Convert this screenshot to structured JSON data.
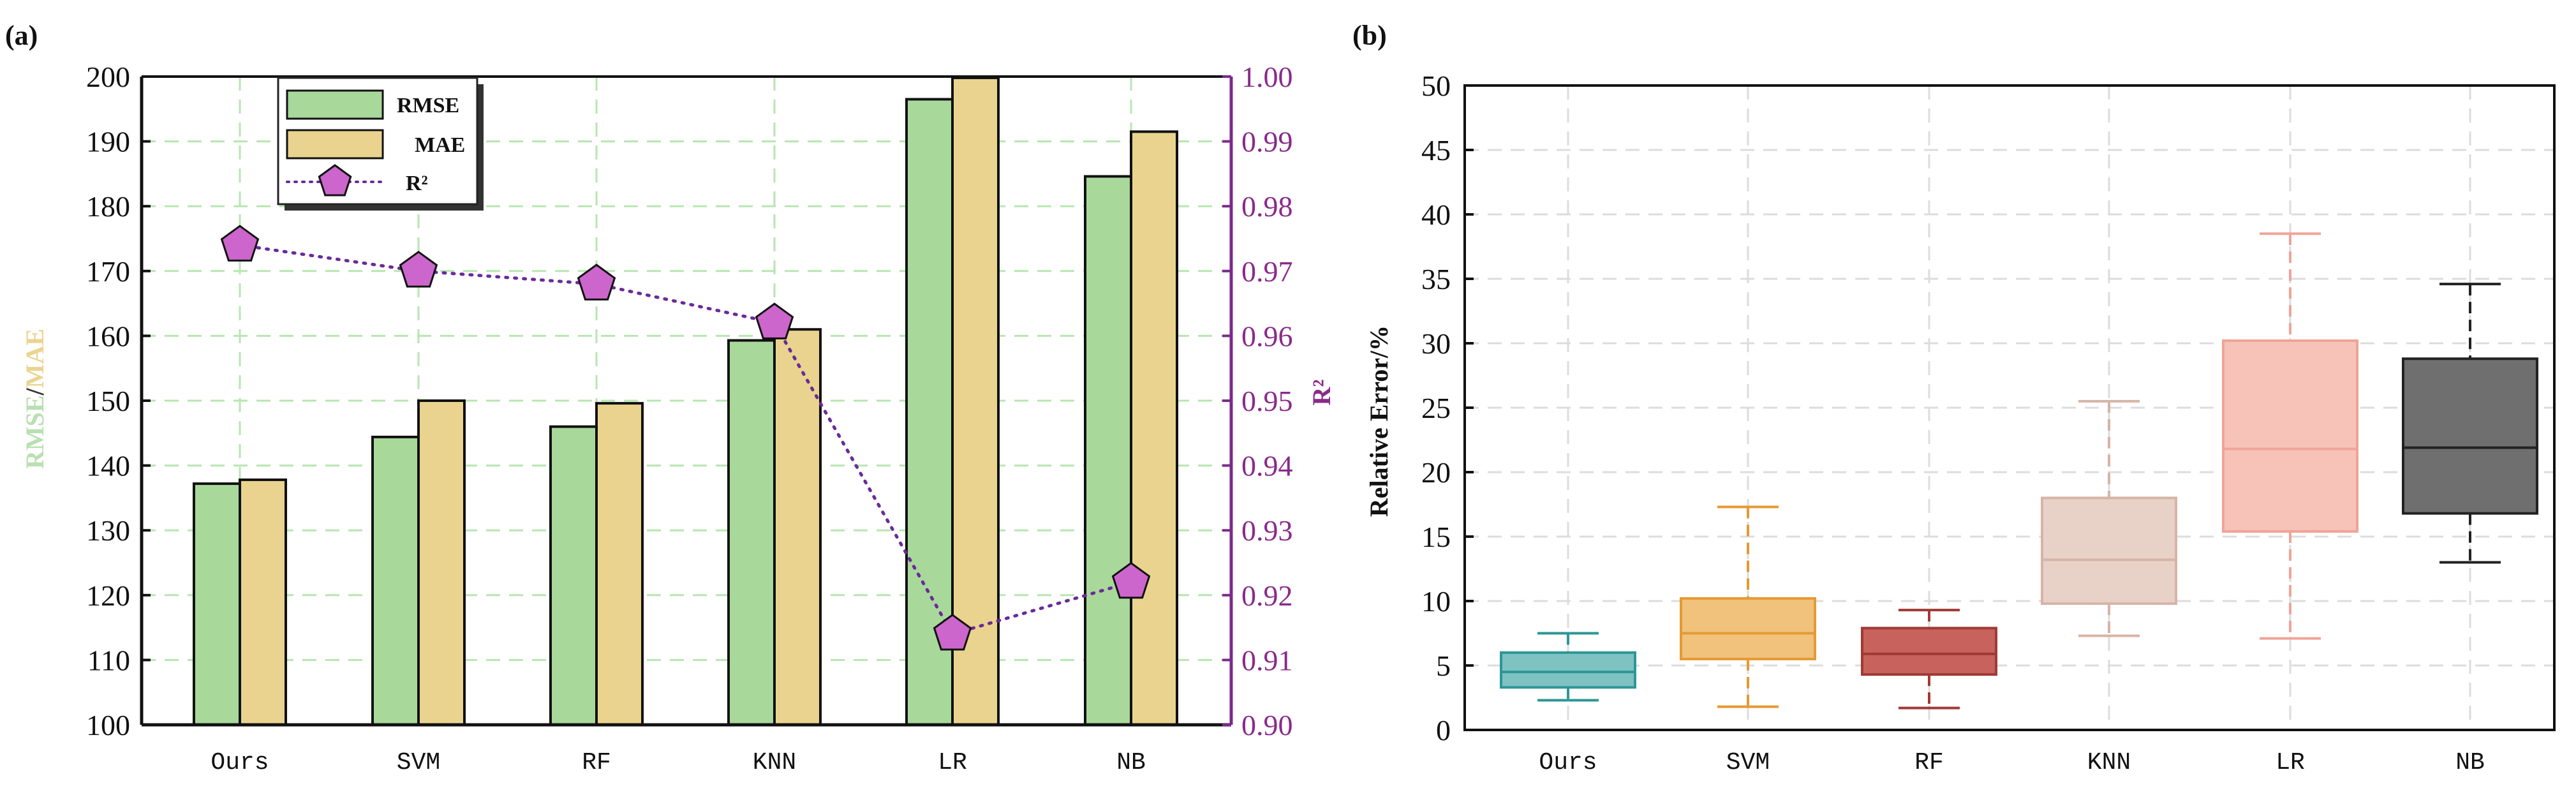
{
  "chart_data": [
    {
      "panel_label": "(a)",
      "type": "bar",
      "categories": [
        "Ours",
        "SVM",
        "RF",
        "KNN",
        "LR",
        "NB"
      ],
      "series": [
        {
          "name": "RMSE",
          "values": [
            137.2,
            144.4,
            146.0,
            159.3,
            196.5,
            184.6
          ],
          "color": "#a8d89a"
        },
        {
          "name": "MAE",
          "values": [
            137.8,
            150.0,
            149.6,
            161.0,
            199.8,
            191.5
          ],
          "color": "#e9d38e"
        }
      ],
      "line_series": {
        "name": "R²",
        "axis": "right",
        "values": [
          0.974,
          0.97,
          0.968,
          0.962,
          0.914,
          0.922
        ],
        "color": "#cc66cc"
      },
      "ylabel_parts": [
        "RMSE",
        "/",
        "MAE"
      ],
      "ylabel_colors": [
        "#b8e0b0",
        "#333333",
        "#ead490"
      ],
      "ylim": [
        100,
        200
      ],
      "yticks": [
        "100",
        "110",
        "120",
        "130",
        "140",
        "150",
        "160",
        "170",
        "180",
        "190",
        "200"
      ],
      "y2label": "R²",
      "y2lim": [
        0.9,
        1.0
      ],
      "y2ticks": [
        "0.90",
        "0.91",
        "0.92",
        "0.93",
        "0.94",
        "0.95",
        "0.96",
        "0.97",
        "0.98",
        "0.99",
        "1.00"
      ],
      "legend": {
        "placement": "top-left",
        "entries": [
          "RMSE",
          "MAE",
          "R²"
        ]
      },
      "grid": true
    },
    {
      "panel_label": "(b)",
      "type": "box",
      "categories": [
        "Ours",
        "SVM",
        "RF",
        "KNN",
        "LR",
        "NB"
      ],
      "ylabel": "Relative Error/%",
      "ylim": [
        0,
        50
      ],
      "yticks": [
        "0",
        "5",
        "10",
        "15",
        "20",
        "25",
        "30",
        "35",
        "40",
        "45",
        "50"
      ],
      "grid": true,
      "boxes": [
        {
          "name": "Ours",
          "min": 2.3,
          "q1": 3.3,
          "median": 4.5,
          "q3": 6.0,
          "max": 7.5,
          "fill": "#7ec2c2",
          "stroke": "#2e9696"
        },
        {
          "name": "SVM",
          "min": 1.8,
          "q1": 5.5,
          "median": 7.5,
          "q3": 10.2,
          "max": 17.3,
          "fill": "#f0c27c",
          "stroke": "#e59a33"
        },
        {
          "name": "RF",
          "min": 1.7,
          "q1": 4.3,
          "median": 5.9,
          "q3": 7.9,
          "max": 9.3,
          "fill": "#c7625c",
          "stroke": "#a03a35"
        },
        {
          "name": "KNN",
          "min": 7.3,
          "q1": 9.8,
          "median": 13.2,
          "q3": 18.0,
          "max": 25.5,
          "fill": "#e8d2c8",
          "stroke": "#d6b4a6"
        },
        {
          "name": "LR",
          "min": 7.1,
          "q1": 15.4,
          "median": 21.8,
          "q3": 30.2,
          "max": 38.5,
          "fill": "#f7c3b8",
          "stroke": "#f0a497"
        },
        {
          "name": "NB",
          "min": 13.0,
          "q1": 16.8,
          "median": 21.9,
          "q3": 28.8,
          "max": 34.6,
          "fill": "#6f6f6f",
          "stroke": "#222222"
        }
      ]
    }
  ]
}
